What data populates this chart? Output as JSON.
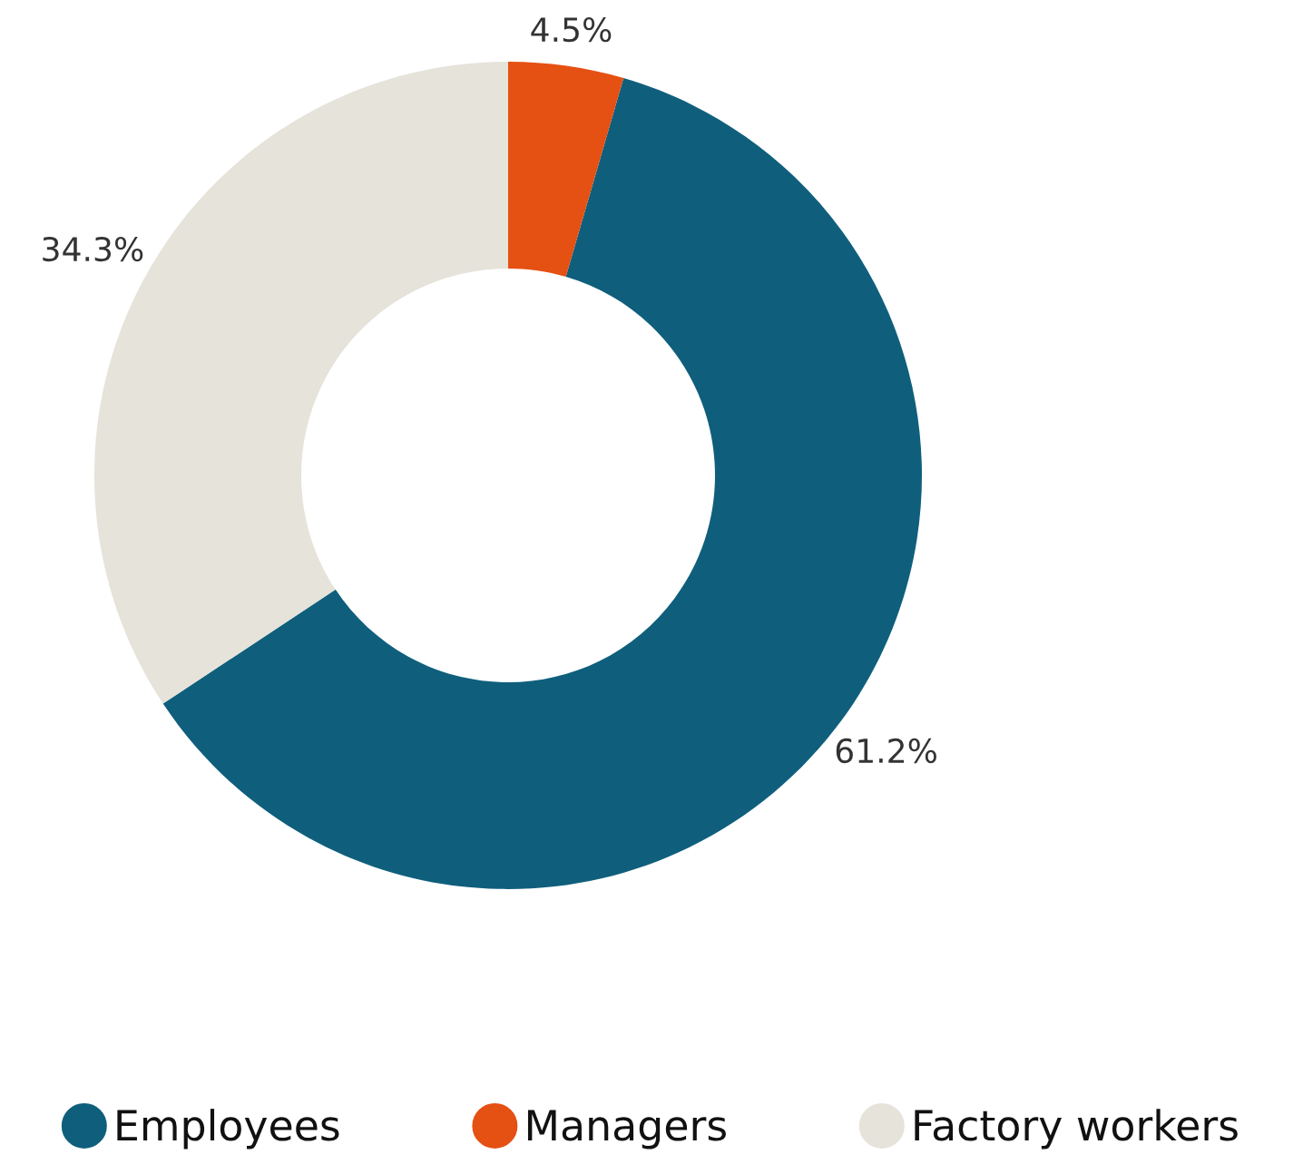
{
  "chart_data": {
    "type": "donut",
    "categories": [
      "Employees",
      "Managers",
      "Factory workers"
    ],
    "values": [
      61.2,
      4.5,
      34.3
    ],
    "colors": [
      "#0f5f7c",
      "#e55013",
      "#e5e3da"
    ],
    "value_labels": [
      "61.2%",
      "4.5%",
      "34.3%"
    ],
    "legend": "bottom"
  }
}
